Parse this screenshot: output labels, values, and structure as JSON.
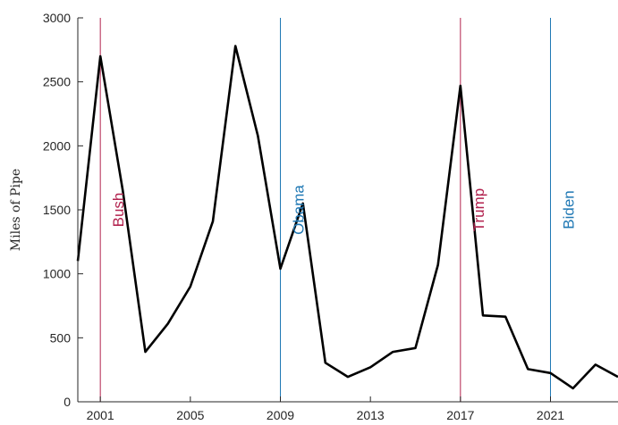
{
  "chart_data": {
    "type": "line",
    "title": "",
    "xlabel": "",
    "ylabel": "Miles of Pipe",
    "xlim": [
      2000,
      2024
    ],
    "ylim": [
      0,
      3000
    ],
    "xticks": [
      2001,
      2005,
      2009,
      2013,
      2017,
      2021
    ],
    "yticks": [
      0,
      500,
      1000,
      1500,
      2000,
      2500,
      3000
    ],
    "grid": false,
    "series": [
      {
        "color": "#000000",
        "x": [
          2000,
          2001,
          2002,
          2003,
          2004,
          2005,
          2006,
          2007,
          2008,
          2009,
          2010,
          2011,
          2012,
          2013,
          2014,
          2015,
          2016,
          2017,
          2018,
          2019,
          2020,
          2021,
          2022,
          2023,
          2024
        ],
        "y": [
          1100,
          2700,
          1650,
          390,
          610,
          900,
          1410,
          2780,
          2080,
          1040,
          1550,
          305,
          195,
          270,
          390,
          420,
          1070,
          2470,
          675,
          665,
          255,
          225,
          105,
          290,
          195
        ]
      }
    ],
    "annotations": [
      {
        "x": 2001,
        "label": "Bush",
        "color": "#b2224e"
      },
      {
        "x": 2009,
        "label": "Obama",
        "color": "#1f78b4"
      },
      {
        "x": 2017,
        "label": "Trump",
        "color": "#b2224e"
      },
      {
        "x": 2021,
        "label": "Biden",
        "color": "#1f78b4"
      }
    ]
  }
}
